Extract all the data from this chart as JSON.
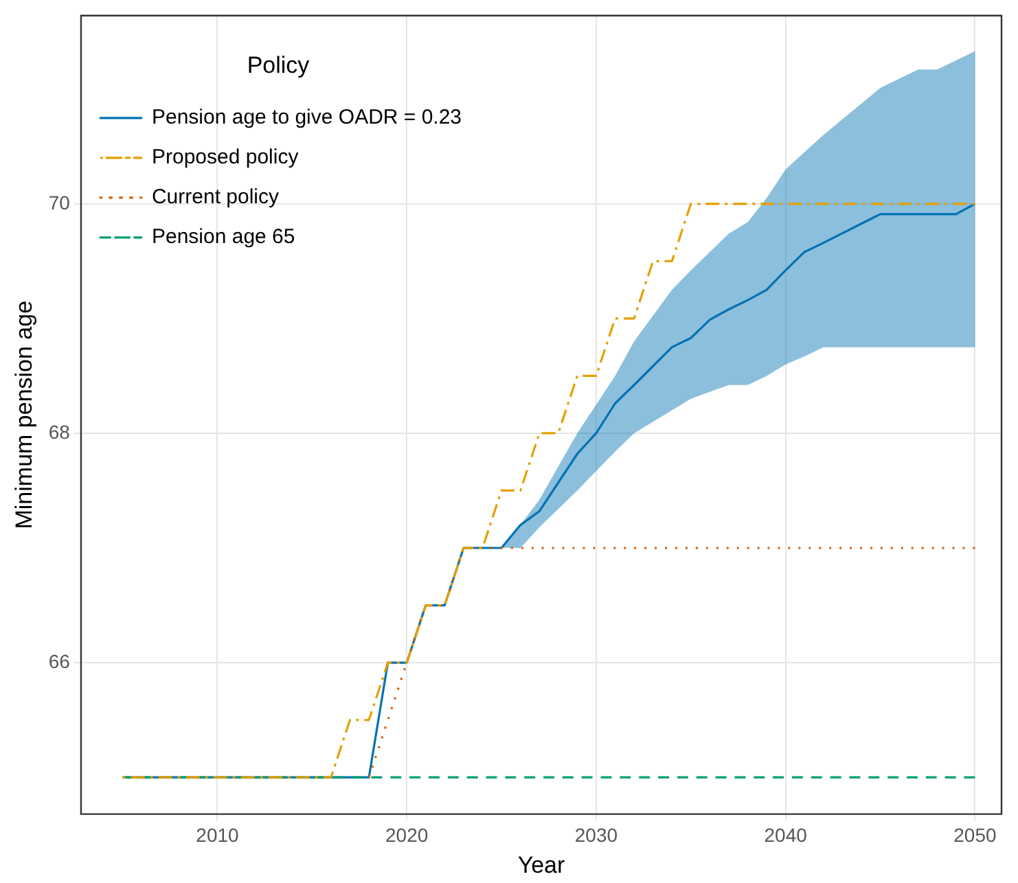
{
  "chart_data": {
    "type": "line",
    "xlabel": "Year",
    "ylabel": "Minimum pension age",
    "legend_title": "Policy",
    "legend": "top left",
    "grid": true,
    "marker": "none",
    "xlim": [
      2002.8,
      2051.4
    ],
    "xticks": [
      2010,
      2020,
      2030,
      2040,
      2050
    ],
    "ylim": [
      64.68,
      71.64
    ],
    "yticks": [
      66,
      68,
      70
    ],
    "series": [
      {
        "name": "Pension age to give OADR = 0.23",
        "color": "#0072b2",
        "line_style": "solid",
        "x": [
          2005,
          2018,
          2019,
          2020,
          2021,
          2022,
          2023,
          2025,
          2026,
          2027,
          2029,
          2030,
          2031,
          2032,
          2034,
          2035,
          2036,
          2037,
          2038,
          2039,
          2040,
          2041,
          2042,
          2045,
          2047,
          2048,
          2049,
          2050
        ],
        "values": [
          65,
          65,
          66,
          66,
          66.5,
          66.5,
          67,
          67,
          67.2,
          67.32,
          67.82,
          68,
          68.26,
          68.42,
          68.75,
          68.83,
          68.99,
          69.08,
          69.16,
          69.25,
          69.42,
          69.58,
          69.66,
          69.91,
          69.91,
          69.91,
          69.91,
          70
        ],
        "lower": [
          null,
          null,
          null,
          null,
          null,
          null,
          null,
          67,
          67,
          67.18,
          67.5,
          67.67,
          67.84,
          68,
          68.2,
          68.3,
          68.36,
          68.42,
          68.42,
          68.5,
          68.6,
          68.67,
          68.75,
          68.75,
          68.75,
          68.75,
          68.75,
          68.75
        ],
        "upper": [
          null,
          null,
          null,
          null,
          null,
          null,
          null,
          67,
          67.2,
          67.42,
          68,
          68.25,
          68.5,
          68.8,
          69.25,
          69.42,
          69.58,
          69.74,
          69.84,
          70.05,
          70.3,
          70.45,
          70.6,
          71.01,
          71.17,
          71.17,
          71.25,
          71.33
        ]
      },
      {
        "name": "Proposed policy",
        "color": "#e69f00",
        "line_style": "dashdot",
        "x": [
          2005,
          2016,
          2017,
          2018,
          2019,
          2020,
          2021,
          2022,
          2023,
          2024,
          2025,
          2026,
          2027,
          2028,
          2029,
          2030,
          2031,
          2032,
          2033,
          2034,
          2035,
          2050
        ],
        "values": [
          65,
          65,
          65.5,
          65.5,
          66,
          66,
          66.5,
          66.5,
          67,
          67,
          67.5,
          67.5,
          68,
          68,
          68.5,
          68.5,
          69,
          69,
          69.5,
          69.5,
          70,
          70
        ]
      },
      {
        "name": "Current policy",
        "color": "#d55e00",
        "line_style": "dotted",
        "x": [
          2018,
          2020,
          2021,
          2022,
          2023,
          2050
        ],
        "values": [
          65,
          66,
          66.5,
          66.5,
          67,
          67
        ]
      },
      {
        "name": "Pension age 65",
        "color": "#009e73",
        "line_style": "dashed",
        "x": [
          2005,
          2050
        ],
        "values": [
          65,
          65
        ]
      }
    ]
  }
}
